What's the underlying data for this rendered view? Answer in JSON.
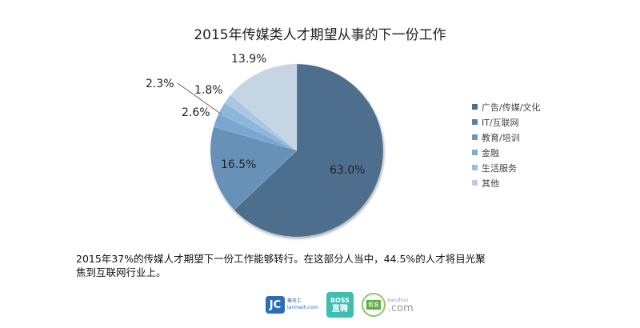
{
  "chart_data": {
    "type": "pie",
    "title": "2015年传媒类人才期望从事的下一份工作",
    "categories": [
      "广告/传媒/文化",
      "IT/互联网",
      "教育/培训",
      "金融",
      "生活服务",
      "其他"
    ],
    "values": [
      63.0,
      16.5,
      2.6,
      2.3,
      1.8,
      13.9
    ],
    "value_labels": [
      "63.0%",
      "16.5%",
      "2.6%",
      "2.3%",
      "1.8%",
      "13.9%"
    ],
    "colors": [
      "#4e6e8c",
      "#6891b8",
      "#7aa6cf",
      "#8db6dc",
      "#a9c7e3",
      "#c6d5e4"
    ],
    "start_angle": "12 o'clock",
    "direction": "clockwise",
    "legend_position": "right"
  },
  "summary": {
    "line1": "2015年37%的传媒人才期望下一份工作能够转行。在这部分人当中，44.5%的人才将目光聚",
    "line2": "焦到互联网行业上。"
  },
  "logos": {
    "jmw": {
      "mark": "JC",
      "cn": "聚名汇",
      "en": "lanmeih.com"
    },
    "boss": {
      "top": "BOSS",
      "bottom": "直聘"
    },
    "kh": {
      "badge": "看准",
      "small": "kanzhun",
      "com": ".com"
    }
  }
}
